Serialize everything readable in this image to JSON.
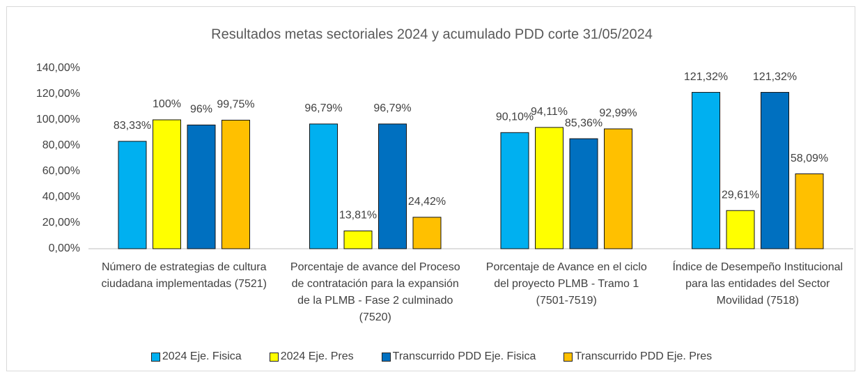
{
  "chart_data": {
    "type": "bar",
    "title": "Resultados metas sectoriales 2024  y acumulado PDD corte 31/05/2024",
    "categories": [
      "Número de estrategias de cultura ciudadana implementadas (7521)",
      "Porcentaje de avance del Proceso de contratación para la expansión de la PLMB - Fase 2 culminado (7520)",
      "Porcentaje de Avance en el ciclo del proyecto PLMB - Tramo 1 (7501-7519)",
      "Índice de Desempeño Institucional para las entidades del Sector Movilidad (7518)"
    ],
    "series": [
      {
        "name": "2024 Eje. Fisica",
        "color": "#00b0f0",
        "values": [
          83.33,
          96.79,
          90.1,
          121.32
        ],
        "value_labels": [
          "83,33%",
          "96,79%",
          "90,10%",
          "121,32%"
        ]
      },
      {
        "name": "2024 Eje. Pres",
        "color": "#ffff00",
        "values": [
          100,
          13.81,
          94.11,
          29.61
        ],
        "value_labels": [
          "100%",
          "13,81%",
          "94,11%",
          "29,61%"
        ]
      },
      {
        "name": "Transcurrido PDD Eje. Fisica",
        "color": "#0070c0",
        "values": [
          96,
          96.79,
          85.36,
          121.32
        ],
        "value_labels": [
          "96%",
          "96,79%",
          "85,36%",
          "121,32%"
        ]
      },
      {
        "name": "Transcurrido PDD Eje. Pres",
        "color": "#ffc000",
        "values": [
          99.75,
          24.42,
          92.99,
          58.09
        ],
        "value_labels": [
          "99,75%",
          "24,42%",
          "92,99%",
          "58,09%"
        ]
      }
    ],
    "ylim": [
      0,
      140
    ],
    "yticks": [
      {
        "value": 0,
        "label": "0,00%"
      },
      {
        "value": 20,
        "label": "20,00%"
      },
      {
        "value": 40,
        "label": "40,00%"
      },
      {
        "value": 60,
        "label": "60,00%"
      },
      {
        "value": 80,
        "label": "80,00%"
      },
      {
        "value": 100,
        "label": "100,00%"
      },
      {
        "value": 120,
        "label": "120,00%"
      },
      {
        "value": 140,
        "label": "140,00%"
      }
    ],
    "grid": false,
    "legend": "bottom"
  }
}
